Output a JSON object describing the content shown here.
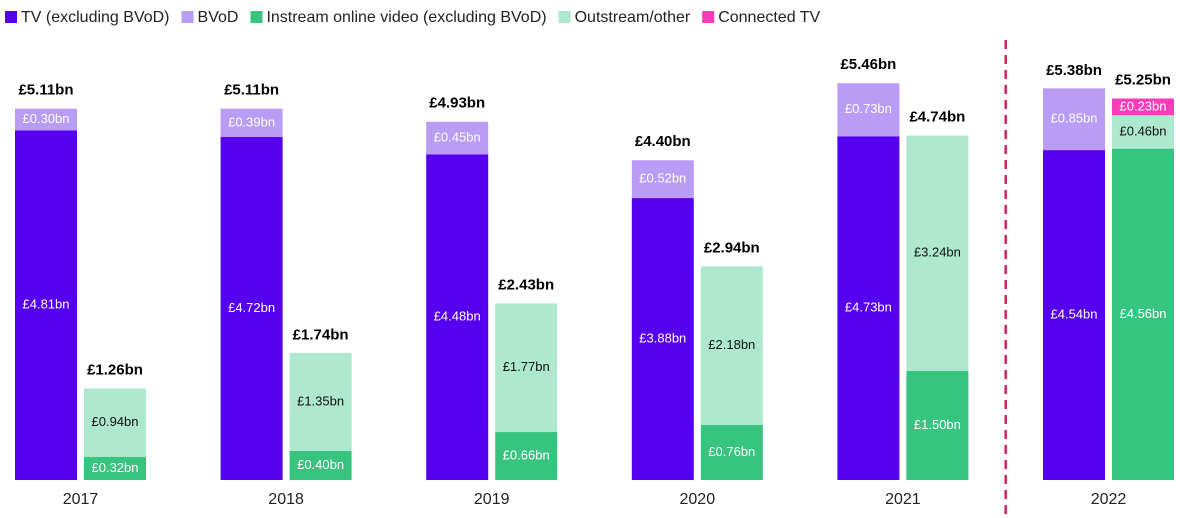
{
  "chart_data": {
    "type": "grouped_stacked_bar",
    "categories": [
      "2017",
      "2018",
      "2019",
      "2020",
      "2021",
      "2022"
    ],
    "ylim": [
      0,
      6
    ],
    "divider_before": 5,
    "series": [
      {
        "name": "TV (excluding BVoD)",
        "color": "#5600f0",
        "label_color": "#ffffff",
        "stack": 0,
        "values": [
          4.81,
          4.72,
          4.48,
          3.88,
          4.73,
          4.54
        ],
        "value_labels": [
          "£4.81bn",
          "£4.72bn",
          "£4.48bn",
          "£3.88bn",
          "£4.73bn",
          "£4.54bn"
        ]
      },
      {
        "name": "BVoD",
        "color": "#b89cf6",
        "label_color": "#ffffff",
        "stack": 0,
        "values": [
          0.3,
          0.39,
          0.45,
          0.52,
          0.73,
          0.85
        ],
        "value_labels": [
          "£0.30bn",
          "£0.39bn",
          "£0.45bn",
          "£0.52bn",
          "£0.73bn",
          "£0.85bn"
        ]
      },
      {
        "name": "Instream online video (excluding BVoD)",
        "color": "#36c47f",
        "label_color": "#ffffff",
        "stack": 1,
        "values": [
          0.32,
          0.4,
          0.66,
          0.76,
          1.5,
          4.56
        ],
        "value_labels": [
          "£0.32bn",
          "£0.40bn",
          "£0.66bn",
          "£0.76bn",
          "£1.50bn",
          "£4.56bn"
        ]
      },
      {
        "name": "Outstream/other",
        "color": "#ade8cf",
        "label_color": "#111111",
        "stack": 1,
        "values": [
          0.94,
          1.35,
          1.77,
          2.18,
          3.24,
          0.46
        ],
        "value_labels": [
          "£0.94bn",
          "£1.35bn",
          "£1.77bn",
          "£2.18bn",
          "£3.24bn",
          "£0.46bn"
        ]
      },
      {
        "name": "Connected TV",
        "color": "#fb3bb8",
        "label_color": "#ffffff",
        "stack": 1,
        "values": [
          null,
          null,
          null,
          null,
          null,
          0.23
        ],
        "value_labels": [
          null,
          null,
          null,
          null,
          null,
          "£0.23bn"
        ]
      }
    ],
    "totals": [
      {
        "values": [
          5.11,
          5.11,
          4.93,
          4.4,
          5.46,
          5.38
        ],
        "value_labels": [
          "£5.11bn",
          "£5.11bn",
          "£4.93bn",
          "£4.40bn",
          "£5.46bn",
          "£5.38bn"
        ]
      },
      {
        "values": [
          1.26,
          1.74,
          2.43,
          2.94,
          4.74,
          5.25
        ],
        "value_labels": [
          "£1.26bn",
          "£1.74bn",
          "£2.43bn",
          "£2.94bn",
          "£4.74bn",
          "£5.25bn"
        ]
      }
    ]
  }
}
